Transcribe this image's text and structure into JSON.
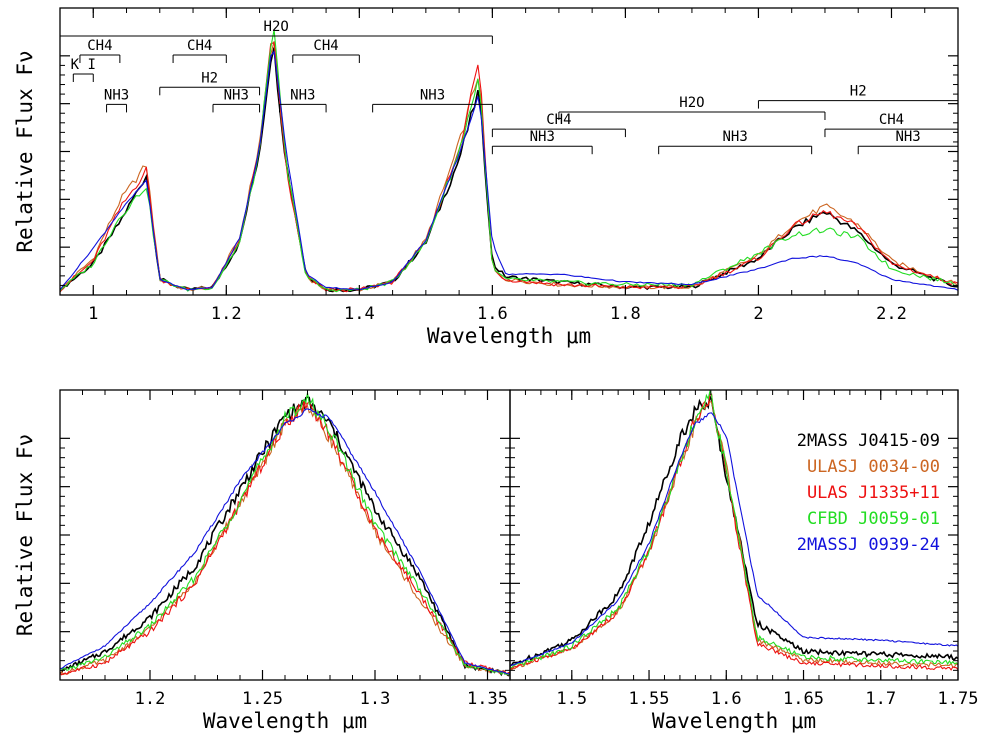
{
  "chart_data": [
    {
      "type": "line",
      "panel": "top",
      "xlabel": "Wavelength μm",
      "ylabel": "Relative Flux Fν",
      "xlim": [
        0.95,
        2.3
      ],
      "ylim": [
        0,
        1.1
      ],
      "x_ticks": [
        "1",
        "1.2",
        "1.4",
        "1.6",
        "1.8",
        "2",
        "2.2"
      ],
      "series": [
        {
          "name": "2MASS J0415-09",
          "color": "#000000",
          "x": [
            0.95,
            1.0,
            1.04,
            1.08,
            1.1,
            1.14,
            1.18,
            1.22,
            1.25,
            1.27,
            1.29,
            1.32,
            1.35,
            1.4,
            1.45,
            1.5,
            1.55,
            1.58,
            1.6,
            1.62,
            1.7,
            1.8,
            1.9,
            2.0,
            2.05,
            2.1,
            2.15,
            2.2,
            2.3
          ],
          "y": [
            0.02,
            0.12,
            0.28,
            0.46,
            0.06,
            0.02,
            0.03,
            0.2,
            0.55,
            0.98,
            0.5,
            0.08,
            0.02,
            0.02,
            0.05,
            0.2,
            0.52,
            0.79,
            0.12,
            0.07,
            0.05,
            0.03,
            0.03,
            0.14,
            0.25,
            0.32,
            0.24,
            0.12,
            0.03
          ]
        },
        {
          "name": "ULASJ 0034-00",
          "color": "#cc6622",
          "x": [
            0.95,
            1.0,
            1.04,
            1.08,
            1.1,
            1.14,
            1.18,
            1.22,
            1.25,
            1.27,
            1.29,
            1.32,
            1.35,
            1.4,
            1.45,
            1.5,
            1.55,
            1.58,
            1.6,
            1.62,
            1.7,
            1.8,
            1.9,
            2.0,
            2.05,
            2.1,
            2.15,
            2.2,
            2.3
          ],
          "y": [
            0.02,
            0.14,
            0.36,
            0.5,
            0.06,
            0.02,
            0.03,
            0.22,
            0.58,
            1.0,
            0.5,
            0.07,
            0.02,
            0.02,
            0.05,
            0.21,
            0.58,
            0.86,
            0.1,
            0.06,
            0.04,
            0.03,
            0.03,
            0.15,
            0.27,
            0.34,
            0.27,
            0.13,
            0.04
          ]
        },
        {
          "name": "ULAS J1335+11",
          "color": "#ee1111",
          "x": [
            0.95,
            1.0,
            1.04,
            1.08,
            1.1,
            1.14,
            1.18,
            1.22,
            1.25,
            1.27,
            1.29,
            1.32,
            1.35,
            1.4,
            1.45,
            1.5,
            1.55,
            1.58,
            1.6,
            1.62,
            1.7,
            1.8,
            1.9,
            2.0,
            2.05,
            2.1,
            2.15,
            2.2,
            2.3
          ],
          "y": [
            0.02,
            0.13,
            0.33,
            0.48,
            0.06,
            0.02,
            0.03,
            0.21,
            0.56,
            1.02,
            0.48,
            0.07,
            0.02,
            0.02,
            0.05,
            0.2,
            0.56,
            0.9,
            0.1,
            0.06,
            0.04,
            0.03,
            0.03,
            0.14,
            0.26,
            0.32,
            0.26,
            0.12,
            0.04
          ]
        },
        {
          "name": "CFBD J0059-01",
          "color": "#22dd22",
          "x": [
            0.95,
            1.0,
            1.04,
            1.08,
            1.1,
            1.14,
            1.18,
            1.22,
            1.25,
            1.27,
            1.29,
            1.32,
            1.35,
            1.4,
            1.45,
            1.5,
            1.55,
            1.58,
            1.6,
            1.62,
            1.7,
            1.8,
            1.9,
            2.0,
            2.05,
            2.1,
            2.15,
            2.2,
            2.3
          ],
          "y": [
            0.02,
            0.12,
            0.3,
            0.42,
            0.06,
            0.02,
            0.03,
            0.2,
            0.55,
            1.05,
            0.5,
            0.07,
            0.02,
            0.02,
            0.05,
            0.2,
            0.55,
            0.84,
            0.1,
            0.06,
            0.05,
            0.04,
            0.04,
            0.16,
            0.23,
            0.25,
            0.22,
            0.1,
            0.04
          ]
        },
        {
          "name": "2MASSJ 0939-24",
          "color": "#1111dd",
          "x": [
            0.95,
            1.0,
            1.04,
            1.08,
            1.1,
            1.14,
            1.18,
            1.22,
            1.25,
            1.27,
            1.29,
            1.32,
            1.35,
            1.4,
            1.45,
            1.5,
            1.55,
            1.58,
            1.6,
            1.62,
            1.7,
            1.8,
            1.9,
            2.0,
            2.05,
            2.1,
            2.15,
            2.2,
            2.3
          ],
          "y": [
            0.02,
            0.18,
            0.32,
            0.44,
            0.06,
            0.02,
            0.03,
            0.22,
            0.56,
            0.98,
            0.55,
            0.08,
            0.03,
            0.02,
            0.05,
            0.21,
            0.54,
            0.77,
            0.2,
            0.08,
            0.08,
            0.05,
            0.04,
            0.1,
            0.14,
            0.15,
            0.12,
            0.06,
            0.02
          ]
        }
      ],
      "bands": [
        {
          "label": "H2O",
          "x0": 0.95,
          "x1": 1.6,
          "level": 0
        },
        {
          "label": "CH4",
          "x0": 0.98,
          "x1": 1.04,
          "level": 1
        },
        {
          "label": "CH4",
          "x0": 1.12,
          "x1": 1.2,
          "level": 1
        },
        {
          "label": "CH4",
          "x0": 1.3,
          "x1": 1.4,
          "level": 1
        },
        {
          "label": "K I",
          "x0": 0.97,
          "x1": 1.0,
          "level": 2
        },
        {
          "label": "H2",
          "x0": 1.1,
          "x1": 1.25,
          "level": 2.7
        },
        {
          "label": "NH3",
          "x0": 1.02,
          "x1": 1.05,
          "level": 3.6
        },
        {
          "label": "NH3",
          "x0": 1.18,
          "x1": 1.25,
          "level": 3.6
        },
        {
          "label": "NH3",
          "x0": 1.28,
          "x1": 1.35,
          "level": 3.6
        },
        {
          "label": "NH3",
          "x0": 1.42,
          "x1": 1.6,
          "level": 3.6
        },
        {
          "label": "H2O",
          "x0": 1.7,
          "x1": 2.1,
          "level": 4.0
        },
        {
          "label": "H2",
          "x0": 2.0,
          "x1": 2.3,
          "level": 3.4
        },
        {
          "label": "CH4",
          "x0": 1.6,
          "x1": 1.8,
          "level": 4.9
        },
        {
          "label": "CH4",
          "x0": 2.1,
          "x1": 2.3,
          "level": 4.9
        },
        {
          "label": "NH3",
          "x0": 1.6,
          "x1": 1.75,
          "level": 5.8
        },
        {
          "label": "NH3",
          "x0": 1.85,
          "x1": 2.08,
          "level": 5.8
        },
        {
          "label": "NH3",
          "x0": 2.15,
          "x1": 2.3,
          "level": 5.8
        }
      ]
    },
    {
      "type": "line",
      "panel": "bottom-left",
      "xlabel": "Wavelength μm",
      "ylabel": "Relative Flux Fν",
      "xlim": [
        1.16,
        1.36
      ],
      "ylim": [
        0,
        1.02
      ],
      "x_ticks": [
        "1.2",
        "1.25",
        "1.3",
        "1.35"
      ],
      "series": [
        {
          "name": "2MASS J0415-09",
          "color": "#000000",
          "x": [
            1.16,
            1.18,
            1.2,
            1.22,
            1.24,
            1.26,
            1.27,
            1.28,
            1.3,
            1.32,
            1.34,
            1.36
          ],
          "y": [
            0.03,
            0.1,
            0.22,
            0.4,
            0.67,
            0.93,
            0.98,
            0.9,
            0.6,
            0.36,
            0.05,
            0.02
          ]
        },
        {
          "name": "ULASJ 0034-00",
          "color": "#cc6622",
          "x": [
            1.16,
            1.18,
            1.2,
            1.22,
            1.24,
            1.26,
            1.27,
            1.28,
            1.3,
            1.32,
            1.34,
            1.36
          ],
          "y": [
            0.02,
            0.07,
            0.18,
            0.35,
            0.62,
            0.9,
            0.97,
            0.85,
            0.52,
            0.28,
            0.05,
            0.02
          ]
        },
        {
          "name": "ULAS J1335+11",
          "color": "#ee1111",
          "x": [
            1.16,
            1.18,
            1.2,
            1.22,
            1.24,
            1.26,
            1.27,
            1.28,
            1.3,
            1.32,
            1.34,
            1.36
          ],
          "y": [
            0.02,
            0.06,
            0.17,
            0.34,
            0.62,
            0.9,
            0.98,
            0.86,
            0.53,
            0.3,
            0.06,
            0.02
          ]
        },
        {
          "name": "CFBD J0059-01",
          "color": "#22dd22",
          "x": [
            1.16,
            1.18,
            1.2,
            1.22,
            1.24,
            1.26,
            1.27,
            1.28,
            1.3,
            1.32,
            1.34,
            1.36
          ],
          "y": [
            0.03,
            0.08,
            0.19,
            0.36,
            0.63,
            0.92,
            0.99,
            0.88,
            0.55,
            0.32,
            0.05,
            0.02
          ]
        },
        {
          "name": "2MASSJ 0939-24",
          "color": "#1111dd",
          "x": [
            1.16,
            1.18,
            1.2,
            1.22,
            1.24,
            1.26,
            1.27,
            1.28,
            1.3,
            1.32,
            1.34,
            1.36
          ],
          "y": [
            0.04,
            0.12,
            0.27,
            0.45,
            0.7,
            0.9,
            0.95,
            0.92,
            0.66,
            0.38,
            0.06,
            0.02
          ]
        }
      ]
    },
    {
      "type": "line",
      "panel": "bottom-right",
      "xlabel": "Wavelength μm",
      "xlim": [
        1.46,
        1.75
      ],
      "ylim": [
        0,
        1.02
      ],
      "x_ticks": [
        "1.5",
        "1.55",
        "1.6",
        "1.65",
        "1.7",
        "1.75"
      ],
      "series": [
        {
          "name": "2MASS J0415-09",
          "color": "#000000",
          "x": [
            1.46,
            1.5,
            1.53,
            1.55,
            1.57,
            1.58,
            1.59,
            1.6,
            1.62,
            1.65,
            1.7,
            1.75
          ],
          "y": [
            0.05,
            0.14,
            0.3,
            0.55,
            0.85,
            0.95,
            0.98,
            0.72,
            0.2,
            0.1,
            0.09,
            0.08
          ]
        },
        {
          "name": "ULASJ 0034-00",
          "color": "#cc6622",
          "x": [
            1.46,
            1.5,
            1.53,
            1.55,
            1.57,
            1.58,
            1.59,
            1.6,
            1.62,
            1.65,
            1.7,
            1.75
          ],
          "y": [
            0.04,
            0.11,
            0.24,
            0.45,
            0.75,
            0.9,
            0.99,
            0.75,
            0.14,
            0.07,
            0.06,
            0.05
          ]
        },
        {
          "name": "ULAS J1335+11",
          "color": "#ee1111",
          "x": [
            1.46,
            1.5,
            1.53,
            1.55,
            1.57,
            1.58,
            1.59,
            1.6,
            1.62,
            1.65,
            1.7,
            1.75
          ],
          "y": [
            0.04,
            0.11,
            0.24,
            0.45,
            0.76,
            0.92,
            1.0,
            0.73,
            0.13,
            0.06,
            0.05,
            0.04
          ]
        },
        {
          "name": "CFBD J0059-01",
          "color": "#22dd22",
          "x": [
            1.46,
            1.5,
            1.53,
            1.55,
            1.57,
            1.58,
            1.59,
            1.6,
            1.62,
            1.65,
            1.7,
            1.75
          ],
          "y": [
            0.04,
            0.12,
            0.25,
            0.46,
            0.77,
            0.92,
            1.0,
            0.74,
            0.15,
            0.08,
            0.07,
            0.06
          ]
        },
        {
          "name": "2MASSJ 0939-24",
          "color": "#1111dd",
          "x": [
            1.46,
            1.5,
            1.53,
            1.55,
            1.57,
            1.58,
            1.59,
            1.6,
            1.62,
            1.65,
            1.7,
            1.75
          ],
          "y": [
            0.05,
            0.13,
            0.28,
            0.48,
            0.78,
            0.9,
            0.94,
            0.86,
            0.3,
            0.15,
            0.14,
            0.12
          ]
        }
      ]
    }
  ],
  "legend": [
    {
      "label": "2MASS J0415-09",
      "color": "#000000"
    },
    {
      "label": "ULASJ 0034-00",
      "color": "#cc6622"
    },
    {
      "label": "ULAS J1335+11",
      "color": "#ee1111"
    },
    {
      "label": "CFBD J0059-01",
      "color": "#22dd22"
    },
    {
      "label": "2MASSJ 0939-24",
      "color": "#1111dd"
    }
  ]
}
